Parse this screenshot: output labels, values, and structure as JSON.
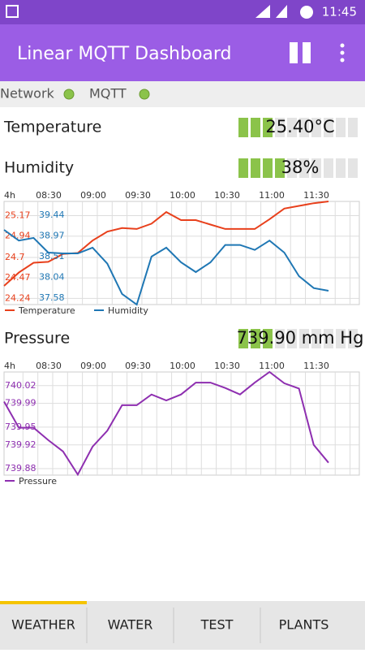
{
  "status_bar": {
    "time": "11:45"
  },
  "app_bar": {
    "title": "Linear MQTT Dashboard"
  },
  "connections": [
    "Network",
    "MQTT"
  ],
  "widgets": [
    {
      "label": "Temperature",
      "value": "25.40°C",
      "filled_segments": 3
    },
    {
      "label": "Humidity",
      "value": "38%",
      "filled_segments": 4
    },
    {
      "label": "Pressure",
      "value": "739.90 mm Hg",
      "filled_segments": 3
    }
  ],
  "charts": [
    {
      "type": "line",
      "x_labels": [
        "4h",
        "08:30",
        "09:00",
        "09:30",
        "10:00",
        "10:30",
        "11:00",
        "11:30"
      ],
      "series": [
        {
          "name": "Temperature",
          "color": "#e8401c",
          "ylim": [
            24.17,
            25.33
          ],
          "yticks": [
            25.17,
            24.94,
            24.7,
            24.47,
            24.24
          ],
          "values": [
            24.38,
            24.53,
            24.64,
            24.65,
            24.74,
            24.75,
            24.89,
            24.99,
            25.03,
            25.02,
            25.08,
            25.21,
            25.12,
            25.12,
            25.07,
            25.02,
            25.02,
            25.02,
            25.13,
            25.25,
            25.28,
            25.31,
            25.33
          ]
        },
        {
          "name": "Humidity",
          "color": "#1f77b4",
          "ylim": [
            37.43,
            39.75
          ],
          "yticks": [
            39.44,
            38.97,
            38.51,
            38.04,
            37.58
          ],
          "values": [
            39.11,
            38.87,
            38.93,
            38.6,
            38.58,
            38.58,
            38.71,
            38.35,
            37.67,
            37.43,
            38.51,
            38.71,
            38.38,
            38.16,
            38.38,
            38.77,
            38.77,
            38.66,
            38.87,
            38.6,
            38.07,
            37.8,
            37.74
          ]
        }
      ]
    },
    {
      "type": "line",
      "x_labels": [
        "4h",
        "08:30",
        "09:00",
        "09:30",
        "10:00",
        "10:30",
        "11:00",
        "11:30"
      ],
      "series": [
        {
          "name": "Pressure",
          "color": "#8e2fb0",
          "ylim": [
            739.869,
            740.043
          ],
          "yticks": [
            740.02,
            739.99,
            739.95,
            739.92,
            739.88
          ],
          "values": [
            739.993,
            739.949,
            739.949,
            739.928,
            739.909,
            739.87,
            739.917,
            739.944,
            739.987,
            739.987,
            740.005,
            739.995,
            740.005,
            740.025,
            740.025,
            740.016,
            740.005,
            740.025,
            740.043,
            740.024,
            740.015,
            739.92,
            739.89
          ]
        }
      ]
    }
  ],
  "tabs": [
    "WEATHER",
    "WATER",
    "TEST",
    "PLANTS"
  ]
}
